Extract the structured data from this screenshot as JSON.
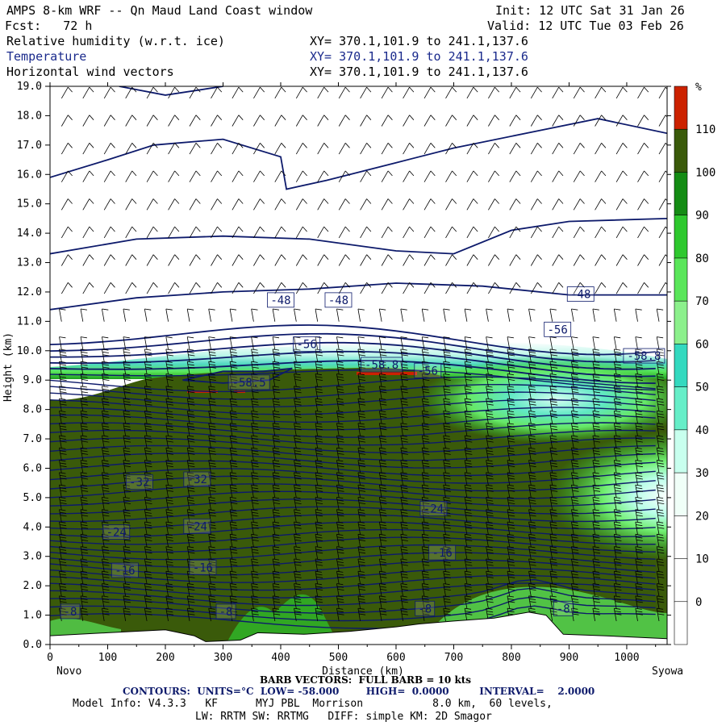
{
  "header": {
    "title": "AMPS 8-km WRF -- Qn Maud Land Coast window",
    "init": "Init: 12 UTC Sat 31 Jan 26",
    "fcst": "Fcst:   72 h",
    "valid": "Valid: 12 UTC Tue 03 Feb 26",
    "fields": [
      {
        "name": "Relative humidity (w.r.t. ice)",
        "xy": "XY= 370.1,101.9 to 241.1,137.6"
      },
      {
        "name": "Temperature",
        "xy": "XY= 370.1,101.9 to 241.1,137.6"
      },
      {
        "name": "Horizontal wind vectors",
        "xy": "XY= 370.1,101.9 to 241.1,137.6"
      }
    ]
  },
  "footer": {
    "barb": "BARB VECTORS:  FULL BARB = 10 kts",
    "contours": "CONTOURS:  UNITS=°C  LOW= -58.000        HIGH=  0.0000         INTERVAL=    2.0000",
    "model": "Model Info: V4.3.3   KF      MYJ PBL  Morrison           8.0 km,  60 levels,",
    "lw": "LW: RRTM SW: RRTMG   DIFF: simple KM: 2D Smagor"
  },
  "chart_data": {
    "type": "heatmap",
    "xlabel": "Distance (km)",
    "ylabel": "Height (km)",
    "xlim": [
      0,
      1070
    ],
    "ylim": [
      0,
      19
    ],
    "x_ticks": [
      0,
      100,
      200,
      300,
      400,
      500,
      600,
      700,
      800,
      900,
      1000
    ],
    "x_tick_labels": [
      "0",
      "100",
      "200",
      "300",
      "400",
      "500",
      "600",
      "700",
      "800",
      "900",
      "1000"
    ],
    "y_ticks": [
      0,
      1,
      2,
      3,
      4,
      5,
      6,
      7,
      8,
      9,
      10,
      11,
      12,
      13,
      14,
      15,
      16,
      17,
      18,
      19
    ],
    "y_tick_labels": [
      "0.0",
      "1.0",
      "2.0",
      "3.0",
      "4.0",
      "5.0",
      "6.0",
      "7.0",
      "8.0",
      "9.0",
      "10.0",
      "11.0",
      "12.0",
      "13.0",
      "14.0",
      "15.0",
      "16.0",
      "17.0",
      "18.0",
      "19.0"
    ],
    "x_endpoints": {
      "left": "Novo",
      "right": "Syowa"
    },
    "colorbar": {
      "unit": "%",
      "levels": [
        0,
        10,
        20,
        30,
        40,
        50,
        60,
        70,
        80,
        90,
        100,
        110
      ],
      "labels": [
        "0",
        "10",
        "20",
        "30",
        "40",
        "50",
        "60",
        "70",
        "80",
        "90",
        "100",
        "110"
      ],
      "colors": [
        "#ffffff",
        "#ffffff",
        "#f0fff8",
        "#c8ffee",
        "#66eec8",
        "#33d9bf",
        "#8cf08c",
        "#5ae65a",
        "#2ec82e",
        "#148c14",
        "#3a5a0a",
        "#cc2200"
      ]
    },
    "contour_labels": [
      {
        "label": "-48",
        "x": 400,
        "y": 11.7
      },
      {
        "label": "-48",
        "x": 500,
        "y": 11.7
      },
      {
        "label": "-48",
        "x": 920,
        "y": 11.9
      },
      {
        "label": "-56",
        "x": 445,
        "y": 10.2
      },
      {
        "label": "-56",
        "x": 880,
        "y": 10.7
      },
      {
        "label": "-56",
        "x": 655,
        "y": 9.3
      },
      {
        "label": "-58.8",
        "x": 575,
        "y": 9.5
      },
      {
        "label": "-58.8",
        "x": 1030,
        "y": 9.8
      },
      {
        "label": "-58.5",
        "x": 345,
        "y": 8.9
      },
      {
        "label": "-32",
        "x": 155,
        "y": 5.5
      },
      {
        "label": "-32",
        "x": 255,
        "y": 5.6
      },
      {
        "label": "-24",
        "x": 115,
        "y": 3.8
      },
      {
        "label": "-24",
        "x": 255,
        "y": 4.0
      },
      {
        "label": "-24",
        "x": 665,
        "y": 4.6
      },
      {
        "label": "-16",
        "x": 130,
        "y": 2.5
      },
      {
        "label": "-16",
        "x": 265,
        "y": 2.6
      },
      {
        "label": "-16",
        "x": 680,
        "y": 3.1
      },
      {
        "label": "-8",
        "x": 35,
        "y": 1.1
      },
      {
        "label": "-8",
        "x": 305,
        "y": 1.1
      },
      {
        "label": "-8",
        "x": 650,
        "y": 1.2
      },
      {
        "label": "-8",
        "x": 890,
        "y": 1.2
      }
    ],
    "terrain_km": [
      [
        0,
        0.3
      ],
      [
        100,
        0.4
      ],
      [
        200,
        0.5
      ],
      [
        250,
        0.3
      ],
      [
        270,
        0.1
      ],
      [
        330,
        0.15
      ],
      [
        360,
        0.4
      ],
      [
        440,
        0.35
      ],
      [
        520,
        0.45
      ],
      [
        600,
        0.6
      ],
      [
        640,
        0.7
      ],
      [
        700,
        0.8
      ],
      [
        770,
        0.9
      ],
      [
        830,
        1.1
      ],
      [
        860,
        1.0
      ],
      [
        890,
        0.35
      ],
      [
        960,
        0.3
      ],
      [
        1070,
        0.2
      ]
    ]
  }
}
